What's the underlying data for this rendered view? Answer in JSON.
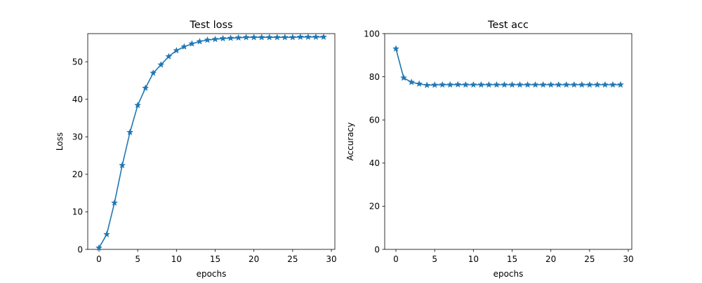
{
  "chart_data": [
    {
      "type": "line",
      "title": "Test loss",
      "xlabel": "epochs",
      "ylabel": "Loss",
      "xlim": [
        -1.45,
        30.45
      ],
      "ylim": [
        0,
        57.5
      ],
      "xticks": [
        0,
        5,
        10,
        15,
        20,
        25,
        30
      ],
      "yticks": [
        0,
        10,
        20,
        30,
        40,
        50
      ],
      "marker": "star",
      "color": "#1f77b4",
      "grid": false,
      "x": [
        0,
        1,
        2,
        3,
        4,
        5,
        6,
        7,
        8,
        9,
        10,
        11,
        12,
        13,
        14,
        15,
        16,
        17,
        18,
        19,
        20,
        21,
        22,
        23,
        24,
        25,
        26,
        27,
        28,
        29
      ],
      "series": [
        {
          "values": [
            0.4,
            4.0,
            12.4,
            22.4,
            31.2,
            38.4,
            43.0,
            47.0,
            49.2,
            51.4,
            53.0,
            54.0,
            54.8,
            55.4,
            55.8,
            56.0,
            56.2,
            56.3,
            56.4,
            56.5,
            56.5,
            56.5,
            56.5,
            56.5,
            56.5,
            56.5,
            56.6,
            56.6,
            56.6,
            56.6
          ]
        }
      ]
    },
    {
      "type": "line",
      "title": "Test acc",
      "xlabel": "epochs",
      "ylabel": "Accuracy",
      "xlim": [
        -1.45,
        30.45
      ],
      "ylim": [
        0,
        100
      ],
      "xticks": [
        0,
        5,
        10,
        15,
        20,
        25,
        30
      ],
      "yticks": [
        0,
        20,
        40,
        60,
        80,
        100
      ],
      "marker": "star",
      "color": "#1f77b4",
      "grid": false,
      "x": [
        0,
        1,
        2,
        3,
        4,
        5,
        6,
        7,
        8,
        9,
        10,
        11,
        12,
        13,
        14,
        15,
        16,
        17,
        18,
        19,
        20,
        21,
        22,
        23,
        24,
        25,
        26,
        27,
        28,
        29
      ],
      "series": [
        {
          "values": [
            93.0,
            79.5,
            77.5,
            76.7,
            76.1,
            76.2,
            76.3,
            76.3,
            76.4,
            76.3,
            76.3,
            76.3,
            76.3,
            76.3,
            76.3,
            76.3,
            76.3,
            76.3,
            76.3,
            76.3,
            76.3,
            76.3,
            76.3,
            76.3,
            76.3,
            76.3,
            76.3,
            76.3,
            76.3,
            76.3
          ]
        }
      ]
    }
  ]
}
